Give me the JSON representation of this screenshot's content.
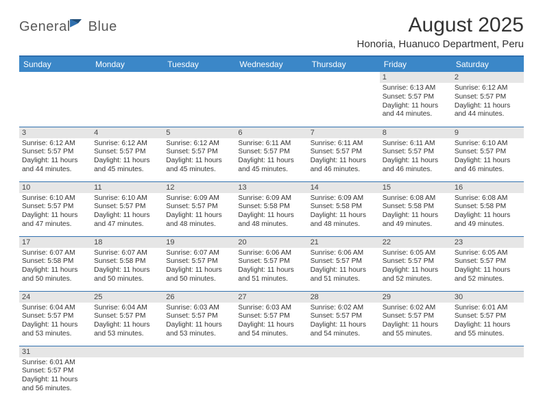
{
  "brand": {
    "part1": "General",
    "part2": "Blue"
  },
  "title": "August 2025",
  "location": "Honoria, Huanuco Department, Peru",
  "colors": {
    "header_bg": "#3b87c8",
    "rule": "#2f6fae",
    "daynum_bg": "#e6e6e6",
    "text": "#333333",
    "brand_gray": "#5a5a5a",
    "brand_blue": "#2f6fae"
  },
  "weekdays": [
    "Sunday",
    "Monday",
    "Tuesday",
    "Wednesday",
    "Thursday",
    "Friday",
    "Saturday"
  ],
  "calendar": {
    "blanks_before": 5,
    "days": [
      {
        "n": 1,
        "sunrise": "6:13 AM",
        "sunset": "5:57 PM",
        "day_h": 11,
        "day_m": 44
      },
      {
        "n": 2,
        "sunrise": "6:12 AM",
        "sunset": "5:57 PM",
        "day_h": 11,
        "day_m": 44
      },
      {
        "n": 3,
        "sunrise": "6:12 AM",
        "sunset": "5:57 PM",
        "day_h": 11,
        "day_m": 44
      },
      {
        "n": 4,
        "sunrise": "6:12 AM",
        "sunset": "5:57 PM",
        "day_h": 11,
        "day_m": 45
      },
      {
        "n": 5,
        "sunrise": "6:12 AM",
        "sunset": "5:57 PM",
        "day_h": 11,
        "day_m": 45
      },
      {
        "n": 6,
        "sunrise": "6:11 AM",
        "sunset": "5:57 PM",
        "day_h": 11,
        "day_m": 45
      },
      {
        "n": 7,
        "sunrise": "6:11 AM",
        "sunset": "5:57 PM",
        "day_h": 11,
        "day_m": 46
      },
      {
        "n": 8,
        "sunrise": "6:11 AM",
        "sunset": "5:57 PM",
        "day_h": 11,
        "day_m": 46
      },
      {
        "n": 9,
        "sunrise": "6:10 AM",
        "sunset": "5:57 PM",
        "day_h": 11,
        "day_m": 46
      },
      {
        "n": 10,
        "sunrise": "6:10 AM",
        "sunset": "5:57 PM",
        "day_h": 11,
        "day_m": 47
      },
      {
        "n": 11,
        "sunrise": "6:10 AM",
        "sunset": "5:57 PM",
        "day_h": 11,
        "day_m": 47
      },
      {
        "n": 12,
        "sunrise": "6:09 AM",
        "sunset": "5:57 PM",
        "day_h": 11,
        "day_m": 48
      },
      {
        "n": 13,
        "sunrise": "6:09 AM",
        "sunset": "5:58 PM",
        "day_h": 11,
        "day_m": 48
      },
      {
        "n": 14,
        "sunrise": "6:09 AM",
        "sunset": "5:58 PM",
        "day_h": 11,
        "day_m": 48
      },
      {
        "n": 15,
        "sunrise": "6:08 AM",
        "sunset": "5:58 PM",
        "day_h": 11,
        "day_m": 49
      },
      {
        "n": 16,
        "sunrise": "6:08 AM",
        "sunset": "5:58 PM",
        "day_h": 11,
        "day_m": 49
      },
      {
        "n": 17,
        "sunrise": "6:07 AM",
        "sunset": "5:58 PM",
        "day_h": 11,
        "day_m": 50
      },
      {
        "n": 18,
        "sunrise": "6:07 AM",
        "sunset": "5:58 PM",
        "day_h": 11,
        "day_m": 50
      },
      {
        "n": 19,
        "sunrise": "6:07 AM",
        "sunset": "5:57 PM",
        "day_h": 11,
        "day_m": 50
      },
      {
        "n": 20,
        "sunrise": "6:06 AM",
        "sunset": "5:57 PM",
        "day_h": 11,
        "day_m": 51
      },
      {
        "n": 21,
        "sunrise": "6:06 AM",
        "sunset": "5:57 PM",
        "day_h": 11,
        "day_m": 51
      },
      {
        "n": 22,
        "sunrise": "6:05 AM",
        "sunset": "5:57 PM",
        "day_h": 11,
        "day_m": 52
      },
      {
        "n": 23,
        "sunrise": "6:05 AM",
        "sunset": "5:57 PM",
        "day_h": 11,
        "day_m": 52
      },
      {
        "n": 24,
        "sunrise": "6:04 AM",
        "sunset": "5:57 PM",
        "day_h": 11,
        "day_m": 53
      },
      {
        "n": 25,
        "sunrise": "6:04 AM",
        "sunset": "5:57 PM",
        "day_h": 11,
        "day_m": 53
      },
      {
        "n": 26,
        "sunrise": "6:03 AM",
        "sunset": "5:57 PM",
        "day_h": 11,
        "day_m": 53
      },
      {
        "n": 27,
        "sunrise": "6:03 AM",
        "sunset": "5:57 PM",
        "day_h": 11,
        "day_m": 54
      },
      {
        "n": 28,
        "sunrise": "6:02 AM",
        "sunset": "5:57 PM",
        "day_h": 11,
        "day_m": 54
      },
      {
        "n": 29,
        "sunrise": "6:02 AM",
        "sunset": "5:57 PM",
        "day_h": 11,
        "day_m": 55
      },
      {
        "n": 30,
        "sunrise": "6:01 AM",
        "sunset": "5:57 PM",
        "day_h": 11,
        "day_m": 55
      },
      {
        "n": 31,
        "sunrise": "6:01 AM",
        "sunset": "5:57 PM",
        "day_h": 11,
        "day_m": 56
      }
    ]
  },
  "labels": {
    "sunrise": "Sunrise:",
    "sunset": "Sunset:",
    "daylight": "Daylight:",
    "hours": "hours",
    "and": "and",
    "minutes": "minutes."
  }
}
